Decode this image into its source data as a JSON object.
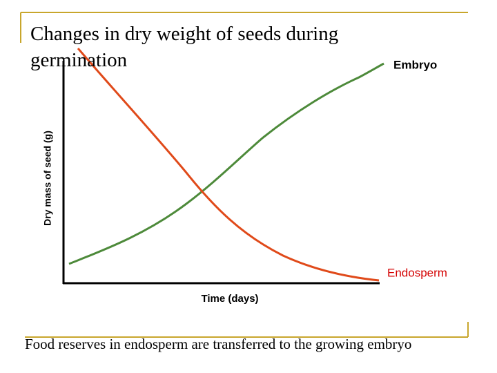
{
  "title": "Changes in dry weight of seeds during germination",
  "y_axis_label": "Dry mass of seed (g)",
  "x_axis_label": "Time (days)",
  "curves": [
    {
      "label": "Embryo"
    },
    {
      "label": "Endosperm"
    }
  ],
  "caption": "Food reserves in endosperm are transferred to the growing embryo"
}
